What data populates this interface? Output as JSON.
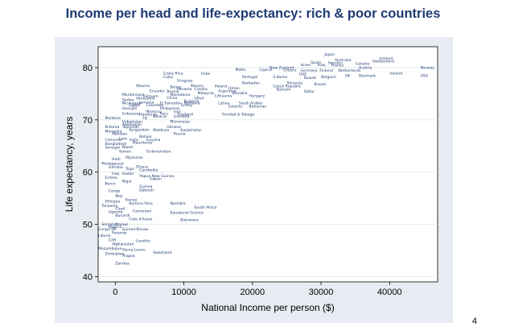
{
  "slide": {
    "title": "Income per head and life-expectancy: rich & poor countries",
    "page_number": "4"
  },
  "colors": {
    "title": "#1f3a73",
    "outer_panel": "#e6ecf1",
    "plot_bg": "#ffffff",
    "marker_label": "#1f3a73",
    "grid": "#dfe5eb"
  },
  "chart_data": {
    "type": "scatter",
    "marker_style": "country-name labels",
    "xlabel": "National Income per person ($)",
    "ylabel": "Life expectancy, years",
    "xlim": [
      -2500,
      47000
    ],
    "ylim": [
      39,
      84
    ],
    "x_ticks": [
      0,
      10000,
      20000,
      30000,
      40000
    ],
    "x_tick_labels": [
      "0",
      "10000",
      "20000",
      "30000",
      "40000"
    ],
    "y_ticks": [
      40,
      50,
      60,
      70,
      80
    ],
    "y_tick_labels": [
      "40",
      "50",
      "60",
      "70",
      "80"
    ],
    "grid": "horizontal",
    "points": [
      {
        "label": "Japan",
        "x": 30500,
        "y": 82.3
      },
      {
        "label": "Iceland",
        "x": 38500,
        "y": 81.5
      },
      {
        "label": "Australia",
        "x": 32000,
        "y": 81.2
      },
      {
        "label": "Switzerland",
        "x": 37500,
        "y": 81.0
      },
      {
        "label": "Spain",
        "x": 28500,
        "y": 80.8
      },
      {
        "label": "Sweden",
        "x": 31000,
        "y": 80.7
      },
      {
        "label": "Canada",
        "x": 35000,
        "y": 80.5
      },
      {
        "label": "Israel",
        "x": 27000,
        "y": 80.3
      },
      {
        "label": "Italy",
        "x": 29500,
        "y": 80.3
      },
      {
        "label": "France",
        "x": 31500,
        "y": 80.2
      },
      {
        "label": "Austria",
        "x": 35500,
        "y": 79.8
      },
      {
        "label": "Norway",
        "x": 44500,
        "y": 79.8
      },
      {
        "label": "New Zealand",
        "x": 22500,
        "y": 79.8
      },
      {
        "label": "Malta",
        "x": 17500,
        "y": 79.4
      },
      {
        "label": "Cyprus",
        "x": 21000,
        "y": 79.4
      },
      {
        "label": "Greece",
        "x": 24500,
        "y": 79.3
      },
      {
        "label": "Germany",
        "x": 27000,
        "y": 79.2
      },
      {
        "label": "Finland",
        "x": 29800,
        "y": 79.2
      },
      {
        "label": "Netherlands",
        "x": 32500,
        "y": 79.2
      },
      {
        "label": "Chile",
        "x": 12500,
        "y": 78.6
      },
      {
        "label": "Costa Rica",
        "x": 7000,
        "y": 78.7
      },
      {
        "label": "UAE",
        "x": 26800,
        "y": 78.5
      },
      {
        "label": "Ireland",
        "x": 40000,
        "y": 78.7
      },
      {
        "label": "USA",
        "x": 44500,
        "y": 78.2
      },
      {
        "label": "UK",
        "x": 33500,
        "y": 78.2
      },
      {
        "label": "Denmark",
        "x": 35500,
        "y": 78.2
      },
      {
        "label": "Belgium",
        "x": 30000,
        "y": 78.0
      },
      {
        "label": "Cuba",
        "x": 7000,
        "y": 78.0
      },
      {
        "label": "Portugal",
        "x": 18500,
        "y": 78.0
      },
      {
        "label": "S.Korea",
        "x": 23000,
        "y": 78.0
      },
      {
        "label": "Kuwait",
        "x": 27500,
        "y": 77.8
      },
      {
        "label": "Uruguay",
        "x": 9000,
        "y": 77.3
      },
      {
        "label": "Barbados",
        "x": 18500,
        "y": 76.8
      },
      {
        "label": "Slovenia",
        "x": 25000,
        "y": 76.8
      },
      {
        "label": "Brunei",
        "x": 29000,
        "y": 76.6
      },
      {
        "label": "Albania",
        "x": 3000,
        "y": 76.3
      },
      {
        "label": "Belize",
        "x": 8000,
        "y": 76.1
      },
      {
        "label": "Mexico",
        "x": 11000,
        "y": 76.3
      },
      {
        "label": "Poland",
        "x": 14500,
        "y": 76.2
      },
      {
        "label": "Czech Republic",
        "x": 23000,
        "y": 76.2
      },
      {
        "label": "Oman",
        "x": 16500,
        "y": 75.8
      },
      {
        "label": "Panama",
        "x": 9000,
        "y": 75.7
      },
      {
        "label": "Croatia",
        "x": 11500,
        "y": 75.7
      },
      {
        "label": "Bahrain",
        "x": 23500,
        "y": 75.6
      },
      {
        "label": "Qatar",
        "x": 27500,
        "y": 75.2
      },
      {
        "label": "Ecuador",
        "x": 5000,
        "y": 75.3
      },
      {
        "label": "Bosnia",
        "x": 7500,
        "y": 75.2
      },
      {
        "label": "Argentina",
        "x": 15000,
        "y": 75.3
      },
      {
        "label": "Malaysia",
        "x": 12000,
        "y": 74.9
      },
      {
        "label": "Montenegro",
        "x": 1000,
        "y": 74.6
      },
      {
        "label": "Macedonia",
        "x": 8000,
        "y": 74.6
      },
      {
        "label": "Slovakia",
        "x": 17000,
        "y": 74.9
      },
      {
        "label": "Lithuania",
        "x": 14500,
        "y": 74.4
      },
      {
        "label": "Hungary",
        "x": 19500,
        "y": 74.4
      },
      {
        "label": "Vietnam",
        "x": 4000,
        "y": 74.3
      },
      {
        "label": "China",
        "x": 7500,
        "y": 74.0
      },
      {
        "label": "Libya",
        "x": 11500,
        "y": 74.0
      },
      {
        "label": "Venezuela",
        "x": 3000,
        "y": 73.9
      },
      {
        "label": "Serbia",
        "x": 1000,
        "y": 73.6
      },
      {
        "label": "Bulgaria",
        "x": 10000,
        "y": 73.4
      },
      {
        "label": "Nicaragua",
        "x": 1000,
        "y": 73.0
      },
      {
        "label": "Jamaica",
        "x": 3500,
        "y": 73.1
      },
      {
        "label": "El Salvador",
        "x": 6500,
        "y": 73.0
      },
      {
        "label": "Romania",
        "x": 10000,
        "y": 73.0
      },
      {
        "label": "Latvia",
        "x": 15000,
        "y": 73.0
      },
      {
        "label": "Saudi Arabia",
        "x": 18000,
        "y": 73.0
      },
      {
        "label": "Egypt",
        "x": 2000,
        "y": 72.6
      },
      {
        "label": "Colombia",
        "x": 4500,
        "y": 72.6
      },
      {
        "label": "Turkey",
        "x": 9500,
        "y": 72.6
      },
      {
        "label": "Estonia",
        "x": 16500,
        "y": 72.4
      },
      {
        "label": "Bahamas",
        "x": 19500,
        "y": 72.4
      },
      {
        "label": "Georgia",
        "x": 1000,
        "y": 72.0
      },
      {
        "label": "Philippines",
        "x": 6500,
        "y": 72.0
      },
      {
        "label": "Morocco",
        "x": 4500,
        "y": 71.4
      },
      {
        "label": "Iran",
        "x": 8500,
        "y": 71.4
      },
      {
        "label": "Indonesia",
        "x": 1000,
        "y": 71.0
      },
      {
        "label": "Honduras",
        "x": 3500,
        "y": 70.8
      },
      {
        "label": "Peru",
        "x": 6500,
        "y": 71.0
      },
      {
        "label": "Thailand",
        "x": 9000,
        "y": 70.8
      },
      {
        "label": "Trinidad & Tobago",
        "x": 15500,
        "y": 70.8
      },
      {
        "label": "Belarus",
        "x": 5500,
        "y": 70.4
      },
      {
        "label": "Grenada",
        "x": 8500,
        "y": 70.4
      },
      {
        "label": "Moldova",
        "x": -1500,
        "y": 70.1
      },
      {
        "label": "Fiji",
        "x": 4000,
        "y": 70.1
      },
      {
        "label": "Uzbekistan",
        "x": 1000,
        "y": 69.4
      },
      {
        "label": "Micronesia",
        "x": 8000,
        "y": 69.4
      },
      {
        "label": "Azerbaijan",
        "x": 1000,
        "y": 68.9
      },
      {
        "label": "N.Korea",
        "x": -1500,
        "y": 68.4
      },
      {
        "label": "Tajikistan",
        "x": 1000,
        "y": 68.4
      },
      {
        "label": "Ukraine",
        "x": 7500,
        "y": 68.4
      },
      {
        "label": "Kyrgyzstan",
        "x": 2000,
        "y": 67.9
      },
      {
        "label": "Maldives",
        "x": 5500,
        "y": 67.8
      },
      {
        "label": "Kazakhstan",
        "x": 9500,
        "y": 67.8
      },
      {
        "label": "Mongolia",
        "x": -1500,
        "y": 67.6
      },
      {
        "label": "Pakistan",
        "x": -500,
        "y": 67.1
      },
      {
        "label": "Russia",
        "x": 8500,
        "y": 67.1
      },
      {
        "label": "Bolivia",
        "x": 3500,
        "y": 66.6
      },
      {
        "label": "Comoros",
        "x": -1500,
        "y": 66.0
      },
      {
        "label": "Laos",
        "x": 500,
        "y": 66.2
      },
      {
        "label": "India",
        "x": 2000,
        "y": 66.0
      },
      {
        "label": "Guyana",
        "x": 4500,
        "y": 66.0
      },
      {
        "label": "Bangladesh",
        "x": -1500,
        "y": 65.2
      },
      {
        "label": "Mauritania",
        "x": 2500,
        "y": 65.4
      },
      {
        "label": "Senegal",
        "x": -1500,
        "y": 64.5
      },
      {
        "label": "Nepal",
        "x": 1000,
        "y": 64.6
      },
      {
        "label": "Yemen",
        "x": 500,
        "y": 63.7
      },
      {
        "label": "Turkmenistan",
        "x": 4500,
        "y": 63.7
      },
      {
        "label": "Haiti",
        "x": -500,
        "y": 62.3
      },
      {
        "label": "Myanmar",
        "x": 1500,
        "y": 62.6
      },
      {
        "label": "Madagascar",
        "x": -2000,
        "y": 61.4
      },
      {
        "label": "Gambia",
        "x": -1000,
        "y": 60.7
      },
      {
        "label": "Ghana",
        "x": 3000,
        "y": 60.8
      },
      {
        "label": "Togo",
        "x": 1500,
        "y": 60.4
      },
      {
        "label": "Cambodia",
        "x": 3500,
        "y": 60.2
      },
      {
        "label": "Iraq",
        "x": -500,
        "y": 59.5
      },
      {
        "label": "Sudan",
        "x": 1000,
        "y": 59.5
      },
      {
        "label": "Papua New Guinea",
        "x": 3500,
        "y": 59.0
      },
      {
        "label": "Eritrea",
        "x": -1500,
        "y": 58.7
      },
      {
        "label": "Gabon",
        "x": 5000,
        "y": 58.5
      },
      {
        "label": "Niger",
        "x": 1000,
        "y": 58.0
      },
      {
        "label": "Benin",
        "x": -1500,
        "y": 57.6
      },
      {
        "label": "Guinea",
        "x": 3500,
        "y": 57.0
      },
      {
        "label": "Congo",
        "x": -1000,
        "y": 56.2
      },
      {
        "label": "Djibouti",
        "x": 3500,
        "y": 56.3
      },
      {
        "label": "Mali",
        "x": 0,
        "y": 55.2
      },
      {
        "label": "Ethiopia",
        "x": -1500,
        "y": 54.2
      },
      {
        "label": "Kenya",
        "x": 1500,
        "y": 54.5
      },
      {
        "label": "Burkina Faso",
        "x": 2000,
        "y": 53.8
      },
      {
        "label": "Tanzania",
        "x": -2000,
        "y": 53.3
      },
      {
        "label": "Namibia",
        "x": 8000,
        "y": 53.8
      },
      {
        "label": "South Africa",
        "x": 11500,
        "y": 53.0
      },
      {
        "label": "Chad",
        "x": 0,
        "y": 52.8
      },
      {
        "label": "Uganda",
        "x": -1000,
        "y": 52.2
      },
      {
        "label": "Cameroon",
        "x": 2500,
        "y": 52.3
      },
      {
        "label": "Equatorial Guinea",
        "x": 8000,
        "y": 52.0
      },
      {
        "label": "Burundi",
        "x": 0,
        "y": 51.5
      },
      {
        "label": "Cote d'Ivoire",
        "x": 2000,
        "y": 50.8
      },
      {
        "label": "Botswana",
        "x": 9500,
        "y": 50.6
      },
      {
        "label": "Somalia",
        "x": -2000,
        "y": 49.8
      },
      {
        "label": "Malawi",
        "x": 0,
        "y": 49.8
      },
      {
        "label": "Nigeria",
        "x": -1000,
        "y": 49.3
      },
      {
        "label": "Congo-DR",
        "x": -2500,
        "y": 48.9
      },
      {
        "label": "Guinea-Bissau",
        "x": 1000,
        "y": 48.9
      },
      {
        "label": "Rwanda",
        "x": -500,
        "y": 48.2
      },
      {
        "label": "Liberia",
        "x": -2500,
        "y": 47.6
      },
      {
        "label": "CAR",
        "x": -1000,
        "y": 46.8
      },
      {
        "label": "Lesotho",
        "x": 3000,
        "y": 46.6
      },
      {
        "label": "Afghanistan",
        "x": -500,
        "y": 46.0
      },
      {
        "label": "Mozambique",
        "x": -2500,
        "y": 45.2
      },
      {
        "label": "Sierra Leone",
        "x": 1000,
        "y": 44.9
      },
      {
        "label": "Swaziland",
        "x": 5500,
        "y": 44.4
      },
      {
        "label": "Zimbabwe",
        "x": -1500,
        "y": 44.2
      },
      {
        "label": "Angola",
        "x": 1000,
        "y": 43.8
      },
      {
        "label": "Zambia",
        "x": 0,
        "y": 42.3
      }
    ]
  }
}
